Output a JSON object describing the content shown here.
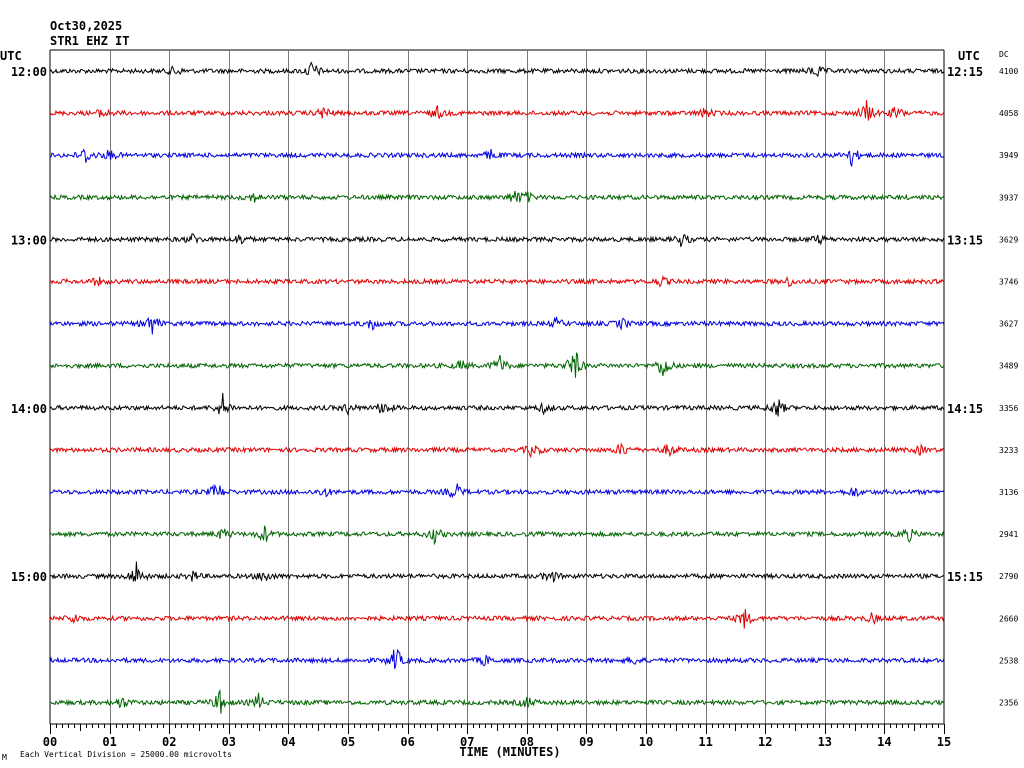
{
  "header": {
    "date": "Oct30,2025",
    "station": "STR1 EHZ IT"
  },
  "labels": {
    "utc_left": "UTC",
    "utc_right": "UTC",
    "dc": "DC",
    "xaxis_title": "TIME (MINUTES)",
    "footer_note": "Each Vertical Division = 25000.00 microvolts",
    "footer_mark": "M"
  },
  "chart_data": {
    "type": "line",
    "title": "",
    "xlabel": "TIME (MINUTES)",
    "ylabel": "",
    "xlim": [
      0,
      15
    ],
    "grid": true,
    "x_ticks": [
      "00",
      "01",
      "02",
      "03",
      "04",
      "05",
      "06",
      "07",
      "08",
      "09",
      "10",
      "11",
      "12",
      "13",
      "14",
      "15"
    ],
    "trace_colors": [
      "#000000",
      "#e00000",
      "#0000e0",
      "#006400"
    ],
    "series": [
      {
        "left_label": "12:00",
        "right_label": "12:15",
        "dc": "4100",
        "events": [
          [
            4.4,
            10
          ],
          [
            12.85,
            7
          ],
          [
            2.1,
            5
          ]
        ]
      },
      {
        "left_label": "",
        "right_label": "",
        "dc": "4058",
        "events": [
          [
            13.7,
            12
          ],
          [
            14.2,
            7
          ],
          [
            0.9,
            6
          ],
          [
            4.6,
            7
          ],
          [
            6.5,
            6
          ],
          [
            11.0,
            5
          ]
        ]
      },
      {
        "left_label": "",
        "right_label": "",
        "dc": "3949",
        "events": [
          [
            0.6,
            9
          ],
          [
            13.45,
            10
          ],
          [
            1.0,
            5
          ],
          [
            7.4,
            5
          ]
        ]
      },
      {
        "left_label": "",
        "right_label": "",
        "dc": "3937",
        "events": [
          [
            7.8,
            7
          ],
          [
            3.4,
            5
          ],
          [
            8.0,
            5
          ]
        ]
      },
      {
        "left_label": "13:00",
        "right_label": "13:15",
        "dc": "3629",
        "events": [
          [
            10.6,
            7
          ],
          [
            2.4,
            5
          ],
          [
            3.2,
            6
          ],
          [
            12.9,
            4
          ]
        ]
      },
      {
        "left_label": "",
        "right_label": "",
        "dc": "3746",
        "events": [
          [
            10.25,
            5
          ],
          [
            12.4,
            4
          ],
          [
            0.8,
            4
          ]
        ]
      },
      {
        "left_label": "",
        "right_label": "",
        "dc": "3627",
        "events": [
          [
            1.7,
            12
          ],
          [
            5.4,
            6
          ],
          [
            8.5,
            5
          ],
          [
            9.6,
            5
          ]
        ]
      },
      {
        "left_label": "",
        "right_label": "",
        "dc": "3489",
        "events": [
          [
            7.55,
            10
          ],
          [
            8.8,
            18
          ],
          [
            10.3,
            14
          ],
          [
            6.9,
            5
          ]
        ]
      },
      {
        "left_label": "14:00",
        "right_label": "14:15",
        "dc": "3356",
        "events": [
          [
            2.9,
            13
          ],
          [
            5.6,
            8
          ],
          [
            12.2,
            11
          ],
          [
            5.0,
            5
          ],
          [
            8.3,
            5
          ]
        ]
      },
      {
        "left_label": "",
        "right_label": "",
        "dc": "3233",
        "events": [
          [
            8.1,
            8
          ],
          [
            9.6,
            7
          ],
          [
            10.4,
            7
          ],
          [
            14.6,
            4
          ]
        ]
      },
      {
        "left_label": "",
        "right_label": "",
        "dc": "3136",
        "events": [
          [
            2.8,
            10
          ],
          [
            6.8,
            10
          ],
          [
            4.6,
            5
          ],
          [
            13.5,
            5
          ]
        ]
      },
      {
        "left_label": "",
        "right_label": "",
        "dc": "2941",
        "events": [
          [
            3.6,
            9
          ],
          [
            6.45,
            8
          ],
          [
            14.4,
            7
          ],
          [
            2.9,
            6
          ]
        ]
      },
      {
        "left_label": "15:00",
        "right_label": "15:15",
        "dc": "2790",
        "events": [
          [
            1.45,
            14
          ],
          [
            3.6,
            7
          ],
          [
            8.4,
            7
          ],
          [
            2.4,
            5
          ]
        ]
      },
      {
        "left_label": "",
        "right_label": "",
        "dc": "2660",
        "events": [
          [
            11.65,
            10
          ],
          [
            0.4,
            5
          ],
          [
            13.8,
            5
          ]
        ]
      },
      {
        "left_label": "",
        "right_label": "",
        "dc": "2538",
        "events": [
          [
            5.8,
            14
          ],
          [
            7.3,
            5
          ],
          [
            9.8,
            4
          ]
        ]
      },
      {
        "left_label": "",
        "right_label": "",
        "dc": "2356",
        "events": [
          [
            2.85,
            12
          ],
          [
            3.5,
            8
          ],
          [
            1.2,
            6
          ],
          [
            8.0,
            6
          ]
        ]
      }
    ]
  }
}
